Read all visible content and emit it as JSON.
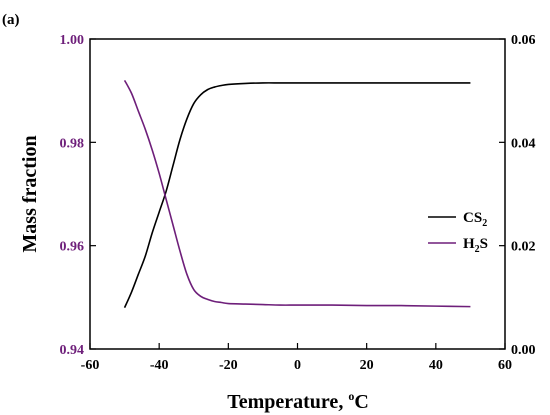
{
  "panel_label": "(a)",
  "colors": {
    "cs2": "#000000",
    "h2s": "#6e1f7a",
    "axis": "#000000"
  },
  "chart_data": {
    "type": "line",
    "title": "",
    "xlabel": "Temperature, °C",
    "xlabel_main": "Temperature, ",
    "xlabel_sup": "o",
    "xlabel_unit": "C",
    "ylabel_left": "Mass fraction",
    "ylabel_right": "",
    "xlim": [
      -60,
      60
    ],
    "ylim_left": [
      0.94,
      1.0
    ],
    "ylim_right": [
      0.0,
      0.06
    ],
    "x_ticks": [
      -60,
      -40,
      -20,
      0,
      20,
      40,
      60
    ],
    "x_tick_labels": [
      "-60",
      "-40",
      "-20",
      "0",
      "20",
      "40",
      "60"
    ],
    "y_left_ticks": [
      0.94,
      0.96,
      0.98,
      1.0
    ],
    "y_left_tick_labels": [
      "0.94",
      "0.96",
      "0.98",
      "1.00"
    ],
    "y_right_ticks": [
      0.0,
      0.02,
      0.04,
      0.06
    ],
    "y_right_tick_labels": [
      "0.00",
      "0.02",
      "0.04",
      "0.06"
    ],
    "legend_position": "right",
    "series": [
      {
        "name": "CS2",
        "legend_main": "CS",
        "legend_sub": "2",
        "axis": "left",
        "x": [
          -50,
          -48,
          -46,
          -44,
          -42,
          -40,
          -38,
          -36,
          -34,
          -32,
          -30,
          -28,
          -26,
          -24,
          -22,
          -20,
          -15,
          -10,
          -5,
          0,
          10,
          20,
          30,
          40,
          50
        ],
        "y": [
          0.948,
          0.951,
          0.9545,
          0.958,
          0.9625,
          0.9665,
          0.9705,
          0.9755,
          0.9805,
          0.9845,
          0.9875,
          0.9892,
          0.9902,
          0.9907,
          0.991,
          0.9912,
          0.9914,
          0.9915,
          0.9915,
          0.9915,
          0.9915,
          0.9915,
          0.9915,
          0.9915,
          0.9915
        ]
      },
      {
        "name": "H2S",
        "legend_main": "H",
        "legend_sub": "2",
        "legend_tail": "S",
        "axis": "right",
        "x": [
          -50,
          -48,
          -46,
          -44,
          -42,
          -40,
          -38,
          -36,
          -34,
          -32,
          -30,
          -28,
          -26,
          -24,
          -22,
          -20,
          -15,
          -10,
          -5,
          0,
          10,
          20,
          30,
          40,
          50
        ],
        "y": [
          0.052,
          0.0495,
          0.046,
          0.0425,
          0.0385,
          0.034,
          0.029,
          0.024,
          0.019,
          0.0145,
          0.0115,
          0.0102,
          0.0096,
          0.0092,
          0.009,
          0.0088,
          0.0087,
          0.0086,
          0.0085,
          0.0085,
          0.0085,
          0.0084,
          0.0084,
          0.0083,
          0.0082
        ]
      }
    ]
  }
}
